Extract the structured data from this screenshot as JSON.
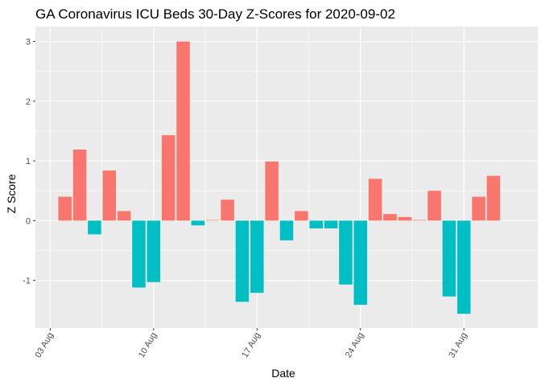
{
  "chart_data": {
    "type": "bar",
    "title": "GA Coronavirus ICU Beds 30-Day Z-Scores for 2020-09-02",
    "xlabel": "Date",
    "ylabel": "Z Score",
    "x": [
      "2020-08-04",
      "2020-08-05",
      "2020-08-06",
      "2020-08-07",
      "2020-08-08",
      "2020-08-09",
      "2020-08-10",
      "2020-08-11",
      "2020-08-12",
      "2020-08-13",
      "2020-08-14",
      "2020-08-15",
      "2020-08-16",
      "2020-08-17",
      "2020-08-18",
      "2020-08-19",
      "2020-08-20",
      "2020-08-21",
      "2020-08-22",
      "2020-08-23",
      "2020-08-24",
      "2020-08-25",
      "2020-08-26",
      "2020-08-27",
      "2020-08-28",
      "2020-08-29",
      "2020-08-30",
      "2020-08-31",
      "2020-09-01",
      "2020-09-02"
    ],
    "values": [
      0.4,
      1.19,
      -0.23,
      0.84,
      0.16,
      -1.12,
      -1.03,
      1.43,
      3.0,
      -0.08,
      0.01,
      0.35,
      -1.36,
      -1.21,
      0.99,
      -0.33,
      0.16,
      -0.13,
      -0.13,
      -1.07,
      -1.41,
      0.7,
      0.11,
      0.06,
      0.01,
      0.5,
      -1.27,
      -1.56,
      0.4,
      0.75
    ],
    "x_ticks": [
      "03 Aug",
      "10 Aug",
      "17 Aug",
      "24 Aug",
      "31 Aug"
    ],
    "x_tick_dates": [
      "2020-08-03",
      "2020-08-10",
      "2020-08-17",
      "2020-08-24",
      "2020-08-31"
    ],
    "xlim": [
      "2020-08-02",
      "2020-09-05"
    ],
    "y_ticks": [
      "-1",
      "0",
      "1",
      "2",
      "3"
    ],
    "y_tick_values": [
      -1,
      0,
      1,
      2,
      3
    ],
    "ylim": [
      -1.8,
      3.25
    ],
    "grid": true,
    "colors": {
      "positive": "#F8766D",
      "negative": "#00BFC4",
      "panel": "#EBEBEB",
      "grid": "#FFFFFF"
    }
  }
}
